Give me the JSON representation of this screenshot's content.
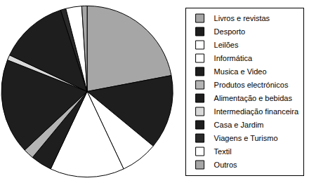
{
  "chart_data": {
    "type": "pie",
    "categories": [
      "Livros e revistas",
      "Desporto",
      "Leilões",
      "Informática",
      "Musica e Video",
      "Produtos electrónicos",
      "Alimentação e bebidas",
      "Intermediação financeira",
      "Casa e Jardim",
      "Viagens e Turismo",
      "Textil",
      "Outros"
    ],
    "values": [
      22,
      14,
      7,
      14,
      4,
      2,
      18,
      1,
      13,
      1,
      3,
      1
    ],
    "colors": [
      "#a6a6a6",
      "#1e1e1e",
      "#ffffff",
      "#ffffff",
      "#1e1e1e",
      "#b4b4b4",
      "#1e1e1e",
      "#d9d9d9",
      "#1e1e1e",
      "#2a2a2a",
      "#ffffff",
      "#a6a6a6"
    ],
    "legend": "right"
  }
}
